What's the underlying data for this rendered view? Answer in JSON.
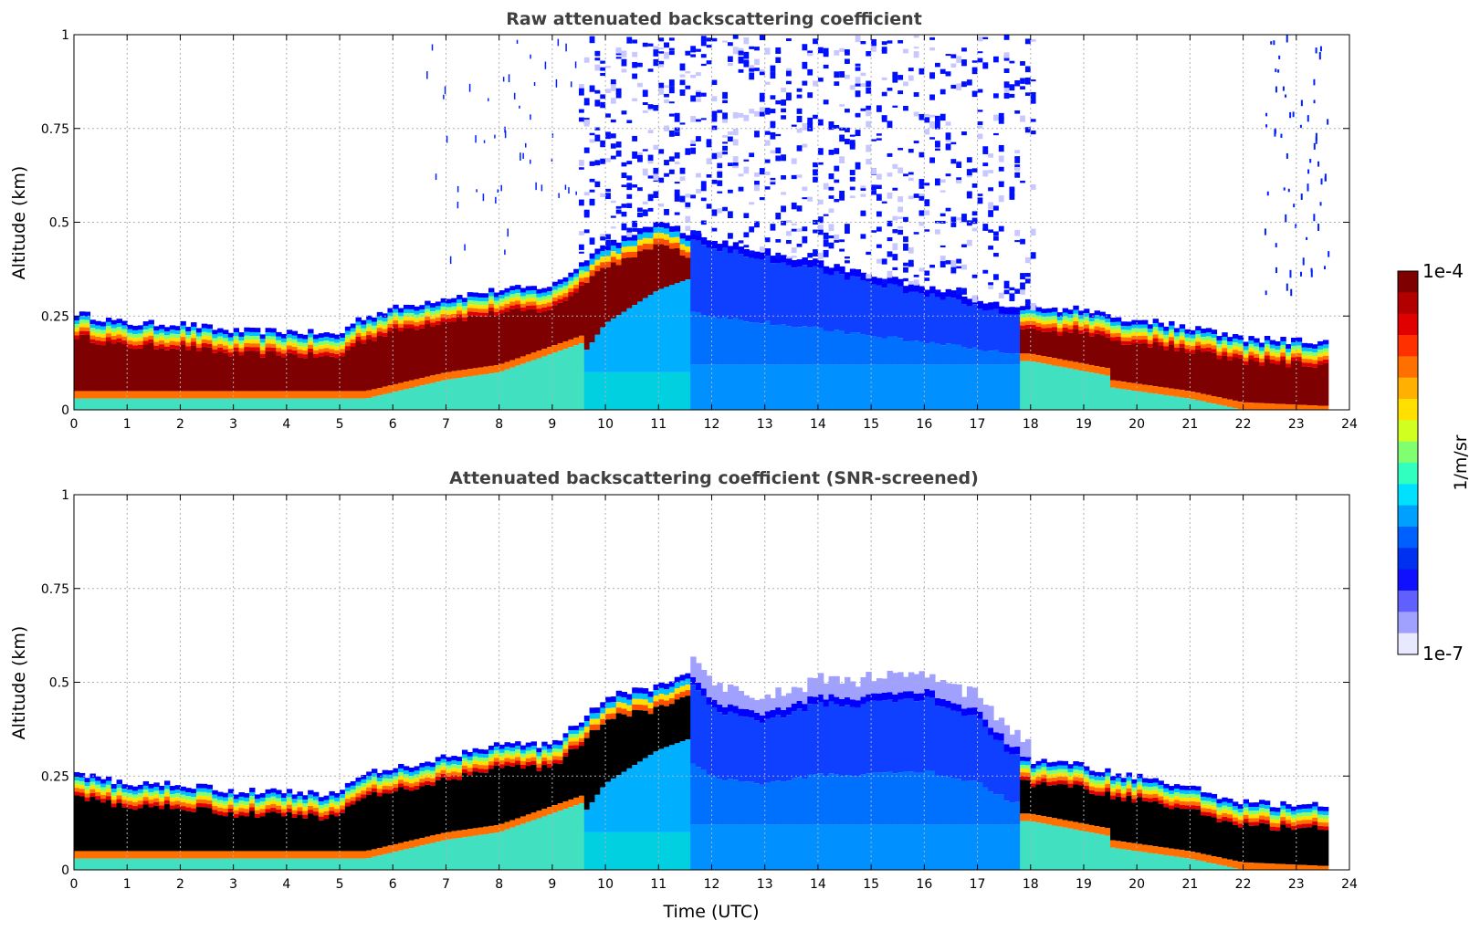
{
  "chart_data": [
    {
      "type": "heatmap",
      "title": "Raw attenuated backscattering coefficient",
      "xlabel": "",
      "ylabel": "Altitude (km)",
      "xlim": [
        0,
        24
      ],
      "ylim": [
        0,
        1
      ],
      "x_ticks": [
        "0",
        "1",
        "2",
        "3",
        "4",
        "5",
        "6",
        "7",
        "8",
        "9",
        "10",
        "11",
        "12",
        "13",
        "14",
        "15",
        "16",
        "17",
        "18",
        "19",
        "20",
        "21",
        "22",
        "23",
        "24"
      ],
      "y_ticks": [
        "0",
        "0.25",
        "0.5",
        "0.75",
        "1"
      ],
      "data_end_hour": 23.6,
      "layer_top_km": [
        [
          0,
          0.26
        ],
        [
          1,
          0.23
        ],
        [
          2,
          0.23
        ],
        [
          3,
          0.21
        ],
        [
          4,
          0.21
        ],
        [
          5,
          0.2
        ],
        [
          5.3,
          0.24
        ],
        [
          6,
          0.27
        ],
        [
          7,
          0.3
        ],
        [
          8,
          0.32
        ],
        [
          9,
          0.33
        ],
        [
          10,
          0.44
        ],
        [
          11,
          0.5
        ],
        [
          11.6,
          0.47
        ],
        [
          17.5,
          0.28
        ],
        [
          18,
          0.27
        ],
        [
          19,
          0.27
        ],
        [
          19.5,
          0.25
        ],
        [
          20,
          0.24
        ],
        [
          21,
          0.22
        ],
        [
          22,
          0.19
        ],
        [
          23.6,
          0.18
        ]
      ],
      "noise_region_hours": [
        9.5,
        18.1
      ]
    },
    {
      "type": "heatmap",
      "title": "Attenuated backscattering coefficient (SNR-screened)",
      "xlabel": "Time (UTC)",
      "ylabel": "Altitude (km)",
      "xlim": [
        0,
        24
      ],
      "ylim": [
        0,
        1
      ],
      "x_ticks": [
        "0",
        "1",
        "2",
        "3",
        "4",
        "5",
        "6",
        "7",
        "8",
        "9",
        "10",
        "11",
        "12",
        "13",
        "14",
        "15",
        "16",
        "17",
        "18",
        "19",
        "20",
        "21",
        "22",
        "23",
        "24"
      ],
      "y_ticks": [
        "0",
        "0.25",
        "0.5",
        "0.75",
        "1"
      ],
      "data_end_hour": 23.6,
      "boundary_layer_top_km": [
        [
          0,
          0.26
        ],
        [
          1,
          0.23
        ],
        [
          2,
          0.23
        ],
        [
          3,
          0.21
        ],
        [
          4,
          0.21
        ],
        [
          5,
          0.2
        ],
        [
          5.3,
          0.25
        ],
        [
          6,
          0.27
        ],
        [
          7,
          0.3
        ],
        [
          8,
          0.34
        ],
        [
          9,
          0.33
        ],
        [
          10,
          0.46
        ],
        [
          11,
          0.49
        ],
        [
          11.6,
          0.52
        ],
        [
          12,
          0.45
        ],
        [
          13,
          0.42
        ],
        [
          14,
          0.46
        ],
        [
          15,
          0.46
        ],
        [
          16,
          0.48
        ],
        [
          17,
          0.42
        ],
        [
          17.5,
          0.35
        ],
        [
          18,
          0.29
        ],
        [
          19,
          0.28
        ],
        [
          19.5,
          0.26
        ],
        [
          20,
          0.25
        ],
        [
          21,
          0.22
        ],
        [
          22,
          0.18
        ],
        [
          23.6,
          0.17
        ]
      ]
    }
  ],
  "colorbar": {
    "label": "1/m/sr",
    "max_label": "1e-4",
    "min_label": "1e-7",
    "colors": [
      "#7f0000",
      "#b20000",
      "#e00000",
      "#ff3000",
      "#ff7000",
      "#ffb000",
      "#ffe000",
      "#d0ff20",
      "#80ff70",
      "#30ffc0",
      "#00e0ff",
      "#00a0ff",
      "#0060ff",
      "#0030f0",
      "#1010ff",
      "#6060ff",
      "#a0a0ff",
      "#e8e8ff"
    ]
  }
}
